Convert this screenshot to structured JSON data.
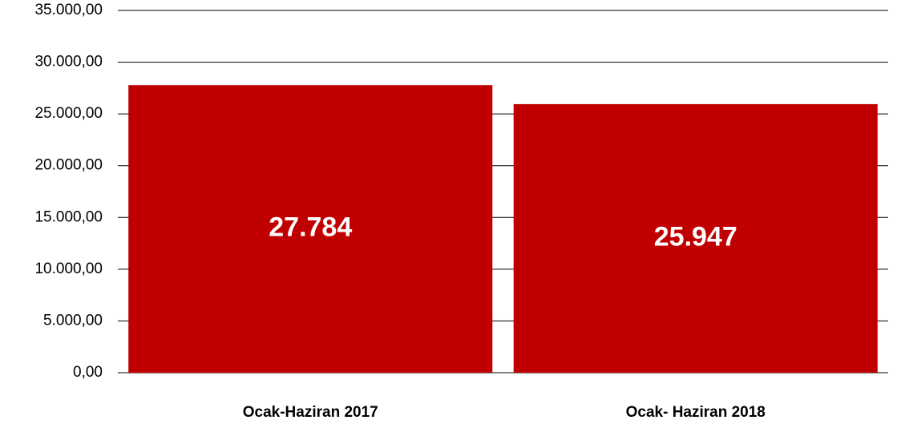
{
  "chart_data": {
    "type": "bar",
    "categories": [
      "Ocak-Haziran 2017",
      "Ocak- Haziran 2018"
    ],
    "values": [
      27784,
      25947
    ],
    "value_labels": [
      "27.784",
      "25.947"
    ],
    "color": "#c00000",
    "ylim": [
      0,
      35000
    ],
    "yticks": [
      {
        "value": 0,
        "label": "0,00"
      },
      {
        "value": 5000,
        "label": "5.000,00"
      },
      {
        "value": 10000,
        "label": "10.000,00"
      },
      {
        "value": 15000,
        "label": "15.000,00"
      },
      {
        "value": 20000,
        "label": "20.000,00"
      },
      {
        "value": 25000,
        "label": "25.000,00"
      },
      {
        "value": 30000,
        "label": "30.000,00"
      },
      {
        "value": 35000,
        "label": "35.000,00"
      }
    ],
    "grid": true
  }
}
